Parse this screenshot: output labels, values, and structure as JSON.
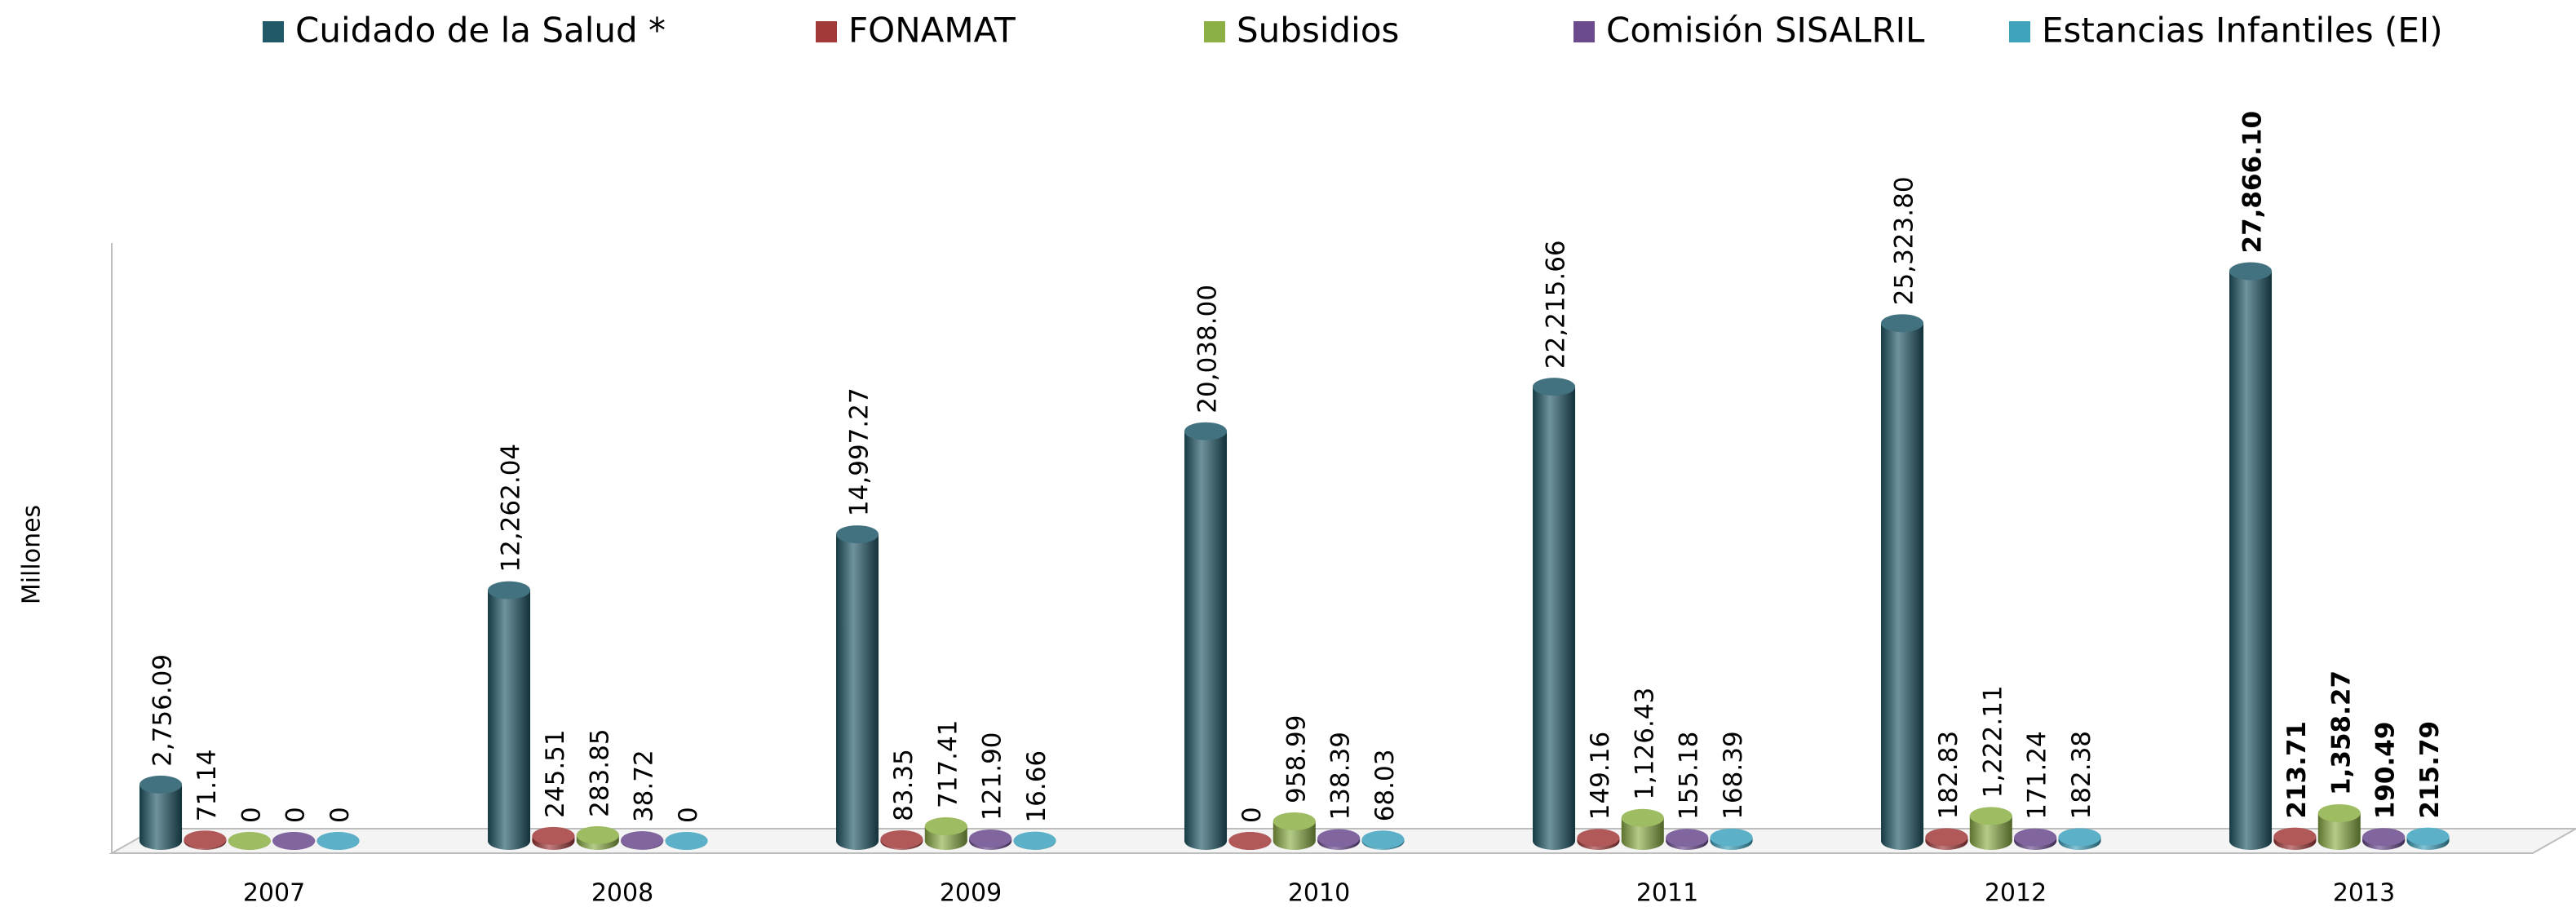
{
  "chart_data": {
    "type": "bar3d",
    "y_label": "Millones",
    "categories": [
      "2007",
      "2008",
      "2009",
      "2010",
      "2011",
      "2012",
      "2013"
    ],
    "ylim": [
      0,
      30000
    ],
    "series": [
      {
        "name": "Cuidado de la Salud *",
        "color": "#215968",
        "values": [
          2756.09,
          12262.04,
          14997.27,
          20038.0,
          22215.66,
          25323.8,
          27866.1
        ],
        "value_labels": [
          "2,756.09",
          "12,262.04",
          "14,997.27",
          "20,038.00",
          "22,215.66",
          "25,323.80",
          "27,866.10"
        ]
      },
      {
        "name": "FONAMAT",
        "color": "#a33a3a",
        "values": [
          71.14,
          245.51,
          83.35,
          0,
          149.16,
          182.83,
          213.71
        ],
        "value_labels": [
          "71.14",
          "245.51",
          "83.35",
          "0",
          "149.16",
          "182.83",
          "213.71"
        ]
      },
      {
        "name": "Subsidios",
        "color": "#8db046",
        "values": [
          0,
          283.85,
          717.41,
          958.99,
          1126.43,
          1222.11,
          1358.27
        ],
        "value_labels": [
          "0",
          "283.85",
          "717.41",
          "958.99",
          "1,126.43",
          "1,222.11",
          "1,358.27"
        ]
      },
      {
        "name": "Comisión SISALRIL",
        "color": "#6b4a8e",
        "values": [
          0,
          38.72,
          121.9,
          138.39,
          155.18,
          171.24,
          190.49
        ],
        "value_labels": [
          "0",
          "38.72",
          "121.90",
          "138.39",
          "155.18",
          "171.24",
          "190.49"
        ]
      },
      {
        "name": "Estancias Infantiles (EI)",
        "color": "#3fa3be",
        "values": [
          0,
          0,
          16.66,
          68.03,
          168.39,
          182.38,
          215.79
        ],
        "value_labels": [
          "0",
          "0",
          "16.66",
          "68.03",
          "168.39",
          "182.38",
          "215.79"
        ]
      }
    ]
  }
}
